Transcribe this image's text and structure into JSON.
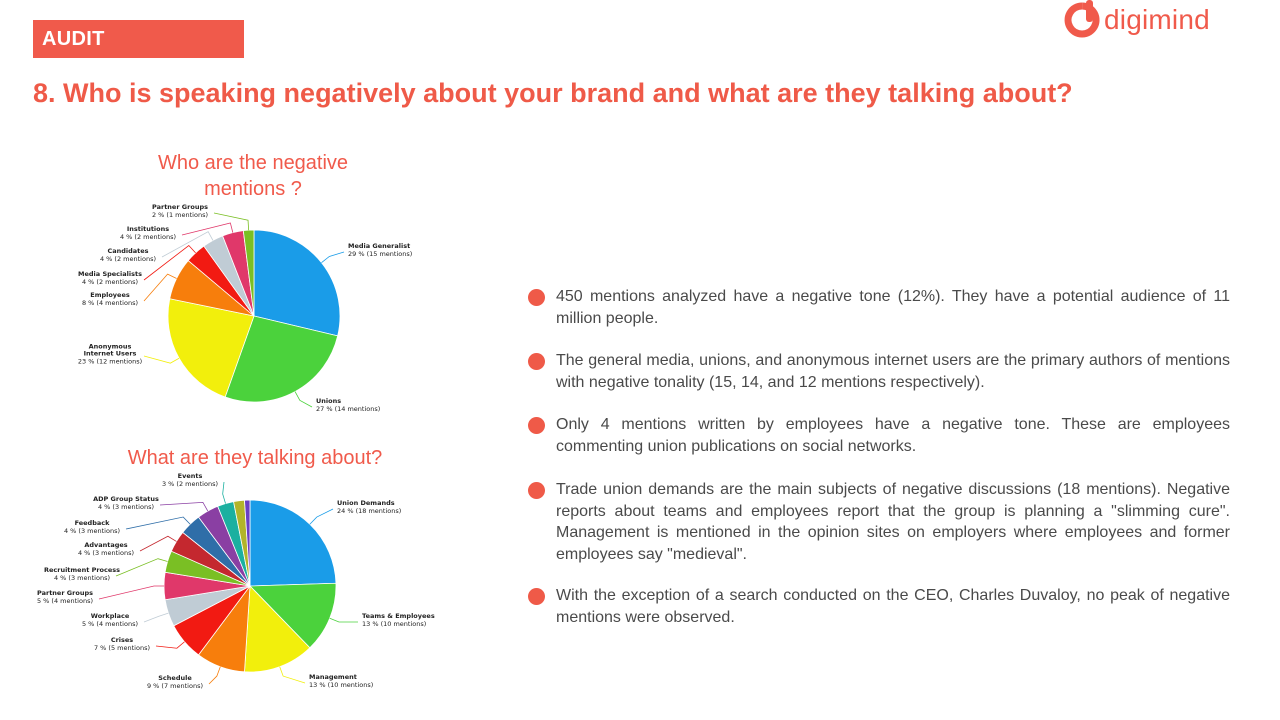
{
  "header": {
    "section_tag": "AUDIT",
    "brand": "digimind",
    "brand_color": "#f05a4b",
    "title": "8. Who is speaking negatively about your brand and what are they talking about?"
  },
  "chart_data": [
    {
      "type": "pie",
      "title": "Who are the negative mentions ?",
      "series": [
        {
          "name": "Media Generalist",
          "value": 29,
          "detail": "29 % (15 mentions)",
          "color": "#1a9ce8"
        },
        {
          "name": "Unions",
          "value": 27,
          "detail": "27 % (14 mentions)",
          "color": "#4bd23c"
        },
        {
          "name": "Anonymous Internet Users",
          "value": 23,
          "detail": "23 % (12 mentions)",
          "color": "#f2ef0c"
        },
        {
          "name": "Employees",
          "value": 8,
          "detail": "8 % (4 mentions)",
          "color": "#f77e0c"
        },
        {
          "name": "Media Specialists",
          "value": 4,
          "detail": "4 % (2 mentions)",
          "color": "#f21a12"
        },
        {
          "name": "Candidates",
          "value": 4,
          "detail": "4 % (2 mentions)",
          "color": "#c0ccd5"
        },
        {
          "name": "Institutions",
          "value": 4,
          "detail": "4 % (2 mentions)",
          "color": "#e0386a"
        },
        {
          "name": "Partner Groups",
          "value": 2,
          "detail": "2 % (1 mentions)",
          "color": "#7abf24"
        }
      ]
    },
    {
      "type": "pie",
      "title": "What are they talking about?",
      "series": [
        {
          "name": "Union Demands",
          "value": 24,
          "detail": "24 % (18 mentions)",
          "color": "#1a9ce8"
        },
        {
          "name": "Teams & Employees",
          "value": 13,
          "detail": "13 % (10 mentions)",
          "color": "#4bd23c"
        },
        {
          "name": "Management",
          "value": 13,
          "detail": "13 % (10 mentions)",
          "color": "#f2ef0c"
        },
        {
          "name": "Schedule",
          "value": 9,
          "detail": "9 % (7 mentions)",
          "color": "#f77e0c"
        },
        {
          "name": "Crises",
          "value": 7,
          "detail": "7 % (5 mentions)",
          "color": "#f21a12"
        },
        {
          "name": "Workplace",
          "value": 5,
          "detail": "5 % (4 mentions)",
          "color": "#c0ccd5"
        },
        {
          "name": "Partner Groups",
          "value": 5,
          "detail": "5 % (4 mentions)",
          "color": "#e0386a"
        },
        {
          "name": "Recruitment Process",
          "value": 4,
          "detail": "4 % (3 mentions)",
          "color": "#7abf24"
        },
        {
          "name": "Advantages",
          "value": 4,
          "detail": "4 % (3 mentions)",
          "color": "#c4282f"
        },
        {
          "name": "Feedback",
          "value": 4,
          "detail": "4 % (3 mentions)",
          "color": "#2f6ea8"
        },
        {
          "name": "ADP Group Status",
          "value": 4,
          "detail": "4 % (3 mentions)",
          "color": "#8a3fa3"
        },
        {
          "name": "Events",
          "value": 3,
          "detail": "3 % (2 mentions)",
          "color": "#1bb0a0"
        },
        {
          "name": "",
          "value": 2,
          "detail": "",
          "color": "#b2b42a"
        },
        {
          "name": "",
          "value": 1,
          "detail": "",
          "color": "#6a3fc4"
        }
      ]
    }
  ],
  "bullets": [
    "450 mentions analyzed have a negative tone (12%). They have a potential audience of 11 million people.",
    "The general media, unions, and anonymous internet users are the primary authors of mentions with negative tonality (15, 14, and 12 mentions respectively).",
    "Only 4 mentions written by employees have a negative tone. These are employees commenting union publications on social networks.",
    "Trade union demands are the main subjects of negative discussions (18 mentions). Negative reports about teams and employees report that the group is planning a \"slimming cure\". Management is mentioned in the opinion sites on employers where employees and former employees say \"medieval\".",
    "With the exception of a search conducted on the CEO, Charles Duvaloy, no peak of negative mentions were observed."
  ],
  "accent_color": "#ef5a48"
}
